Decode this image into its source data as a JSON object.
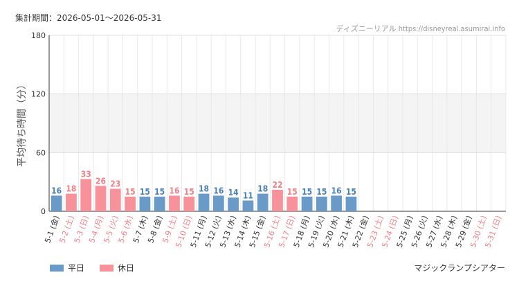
{
  "header": {
    "period": "集計期間：2026-05-01～2026-05-31",
    "credit": "ディズニーリアル https://disneyreal.asumirai.info"
  },
  "footer": {
    "attraction": "マジックランプシアター"
  },
  "colors": {
    "weekday": "#6a9ac8",
    "holiday": "#f7929a",
    "weekday_label": "#4a7fb5",
    "holiday_label": "#f07f88"
  },
  "legend": [
    {
      "label": "平日",
      "type": "weekday"
    },
    {
      "label": "休日",
      "type": "holiday"
    }
  ],
  "chart_data": {
    "type": "bar",
    "ylabel": "平均待ち時間（分）",
    "ylim": [
      0,
      180
    ],
    "yticks": [
      0,
      60,
      120,
      180
    ],
    "grid": true,
    "shaded_band": [
      60,
      120
    ],
    "legend_position": "bottom-left",
    "categories": [
      "5-1 (金)",
      "5-2 (土)",
      "5-3 (日)",
      "5-4 (月)",
      "5-5 (火)",
      "5-6 (水)",
      "5-7 (木)",
      "5-8 (金)",
      "5-9 (土)",
      "5-10 (日)",
      "5-11 (月)",
      "5-12 (火)",
      "5-13 (水)",
      "5-14 (木)",
      "5-15 (金)",
      "5-16 (土)",
      "5-17 (日)",
      "5-18 (月)",
      "5-19 (火)",
      "5-20 (水)",
      "5-21 (木)",
      "5-22 (金)",
      "5-23 (土)",
      "5-24 (日)",
      "5-25 (月)",
      "5-26 (火)",
      "5-27 (水)",
      "5-28 (木)",
      "5-29 (金)",
      "5-30 (土)",
      "5-31 (日)"
    ],
    "day_type": [
      "weekday",
      "holiday",
      "holiday",
      "holiday",
      "holiday",
      "holiday",
      "weekday",
      "weekday",
      "holiday",
      "holiday",
      "weekday",
      "weekday",
      "weekday",
      "weekday",
      "weekday",
      "holiday",
      "holiday",
      "weekday",
      "weekday",
      "weekday",
      "weekday",
      "weekday",
      "holiday",
      "holiday",
      "weekday",
      "weekday",
      "weekday",
      "weekday",
      "weekday",
      "holiday",
      "holiday"
    ],
    "values": [
      16,
      18,
      33,
      26,
      23,
      15,
      15,
      15,
      16,
      15,
      18,
      16,
      14,
      11,
      18,
      22,
      15,
      15,
      15,
      16,
      15,
      null,
      null,
      null,
      null,
      null,
      null,
      null,
      null,
      null,
      null
    ]
  }
}
